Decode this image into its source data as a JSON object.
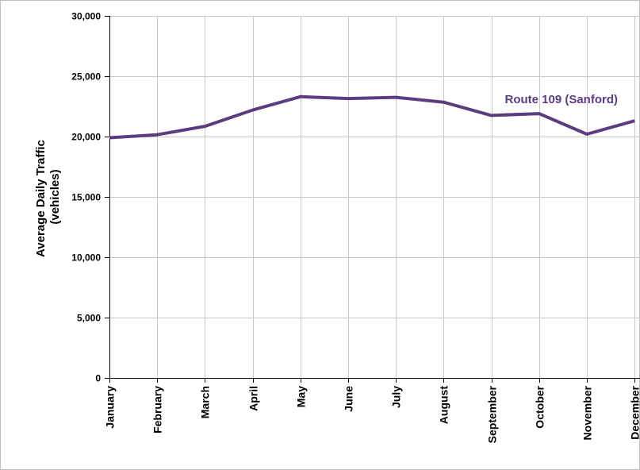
{
  "chart_data": {
    "type": "line",
    "title": "",
    "xlabel": "",
    "ylabel": [
      "Average Daily Traffic",
      "(vehicles)"
    ],
    "categories": [
      "January",
      "February",
      "March",
      "April",
      "May",
      "June",
      "July",
      "August",
      "September",
      "October",
      "November",
      "December"
    ],
    "series": [
      {
        "name": "Route 109 (Sanford)",
        "color": "#5b3d7f",
        "values": [
          19900,
          20150,
          20850,
          22200,
          23300,
          23150,
          23250,
          22850,
          21750,
          21900,
          20200,
          21300
        ]
      }
    ],
    "ylim": [
      0,
      30000
    ],
    "yticks": [
      0,
      5000,
      10000,
      15000,
      20000,
      25000,
      30000
    ],
    "ytick_labels": [
      "0",
      "5,000",
      "10,000",
      "15,000",
      "20,000",
      "25,000",
      "30,000"
    ],
    "grid": true,
    "legend": "inline label near line, upper right"
  }
}
